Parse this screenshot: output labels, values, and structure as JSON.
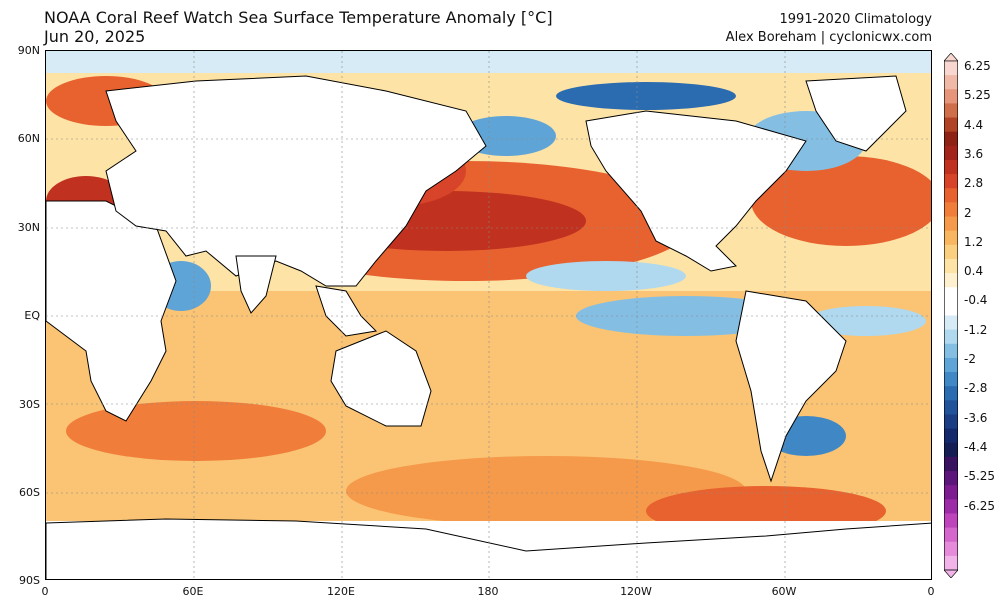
{
  "header": {
    "title": "NOAA Coral Reef Watch Sea Surface Temperature Anomaly [°C]",
    "date": "Jun 20, 2025",
    "climatology": "1991-2020 Climatology",
    "credit": "Alex Boreham | cyclonicwx.com"
  },
  "axes": {
    "lat_labels": [
      "90N",
      "60N",
      "30N",
      "EQ",
      "30S",
      "60S",
      "90S"
    ],
    "lon_labels": [
      "0",
      "60E",
      "120E",
      "180",
      "120W",
      "60W",
      "0"
    ]
  },
  "colorbar": {
    "labels": [
      "6.25",
      "5.25",
      "4.4",
      "3.6",
      "2.8",
      "2",
      "1.2",
      "0.4",
      "-0.4",
      "-1.2",
      "-2",
      "-2.8",
      "-3.6",
      "-4.4",
      "-5.25",
      "-6.25"
    ],
    "colors": [
      "#f7d7cf",
      "#f0b8a6",
      "#e6957a",
      "#cf6e4a",
      "#b04225",
      "#8e2315",
      "#a3241a",
      "#c0311f",
      "#d8442a",
      "#e86230",
      "#f07e3a",
      "#f59a4a",
      "#f8b660",
      "#fbcf80",
      "#fde3a6",
      "#fff1cf",
      "#ffffff",
      "#ffffff",
      "#d7ebf6",
      "#b0d8ee",
      "#84bfe3",
      "#5fa4d6",
      "#3f88c5",
      "#2b6bb0",
      "#20539a",
      "#1a3d83",
      "#14296c",
      "#151d55",
      "#3a1360",
      "#5c157a",
      "#7d1b91",
      "#9d2aa6",
      "#bd44bb",
      "#d466cc",
      "#e58bd9",
      "#f1b3e8"
    ]
  },
  "colors": {
    "warm_strong": "#b8241a",
    "warm": "#e8692f",
    "warm_light": "#f5a352",
    "warm_pale": "#fbd28a",
    "cool_pale": "#bcdcf0",
    "cool": "#6aa9d8",
    "cool_strong": "#2f6db3",
    "land": "#ffffff",
    "coast": "#000000"
  }
}
